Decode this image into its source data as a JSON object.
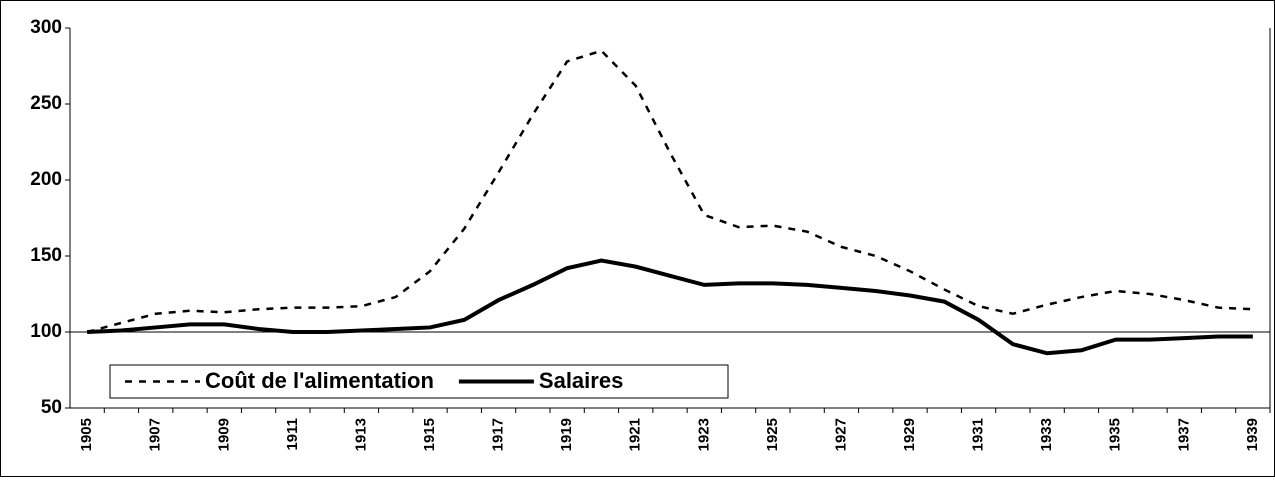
{
  "chart_data": {
    "type": "line",
    "x": [
      1905,
      1906,
      1907,
      1908,
      1909,
      1910,
      1911,
      1912,
      1913,
      1914,
      1915,
      1916,
      1917,
      1918,
      1919,
      1920,
      1921,
      1922,
      1923,
      1924,
      1925,
      1926,
      1927,
      1928,
      1929,
      1930,
      1931,
      1932,
      1933,
      1934,
      1935,
      1936,
      1937,
      1938,
      1939
    ],
    "series": [
      {
        "name": "Coût de l'alimentation",
        "color": "#000000",
        "dash": true,
        "values": [
          100,
          106,
          112,
          114,
          113,
          115,
          116,
          116,
          117,
          123,
          140,
          168,
          205,
          243,
          278,
          285,
          262,
          218,
          177,
          169,
          170,
          166,
          156,
          150,
          140,
          128,
          117,
          112,
          118,
          123,
          127,
          125,
          121,
          116,
          115
        ]
      },
      {
        "name": "Salaires",
        "color": "#000000",
        "dash": false,
        "values": [
          100,
          101,
          103,
          105,
          105,
          102,
          100,
          100,
          101,
          102,
          103,
          108,
          121,
          131,
          142,
          147,
          143,
          137,
          131,
          132,
          132,
          131,
          129,
          127,
          124,
          120,
          108,
          92,
          86,
          88,
          95,
          95,
          96,
          97,
          97
        ]
      }
    ],
    "xlim": [
      1904.5,
      1939.5
    ],
    "xticks": [
      1905,
      1907,
      1909,
      1911,
      1913,
      1915,
      1917,
      1919,
      1921,
      1923,
      1925,
      1927,
      1929,
      1931,
      1933,
      1935,
      1937,
      1939
    ],
    "ylim": [
      50,
      300
    ],
    "yticks": [
      50,
      100,
      150,
      200,
      250,
      300
    ],
    "hline": 100,
    "legend": "bottom left"
  }
}
